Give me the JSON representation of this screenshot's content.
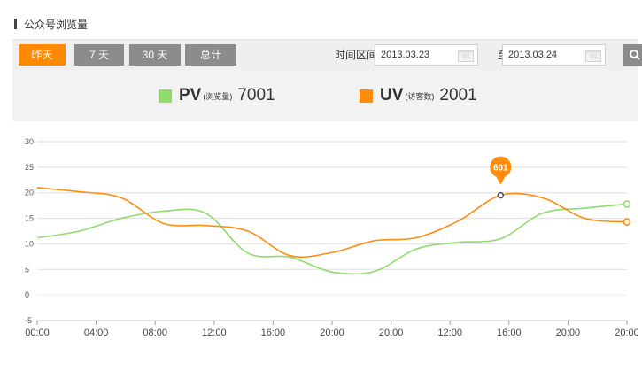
{
  "header": {
    "title": "公众号浏览量"
  },
  "toolbar": {
    "range_buttons": [
      {
        "label": "昨天",
        "active": true
      },
      {
        "label": "7 天",
        "active": false
      },
      {
        "label": "30 天",
        "active": false
      },
      {
        "label": "总计",
        "active": false
      }
    ],
    "range_label": "时间区间",
    "start_date": "2013.03.23",
    "to_label": "至",
    "end_date": "2013.03.24"
  },
  "legend": [
    {
      "name": "PV",
      "sub": "(浏览量)",
      "value": "7001",
      "color": "#8fdc6b"
    },
    {
      "name": "UV",
      "sub": "(访客数)",
      "value": "2001",
      "color": "#ff8c0d"
    }
  ],
  "tooltip": {
    "label": "601"
  },
  "chart_data": {
    "type": "line",
    "x_ticks": [
      "00:00",
      "04:00",
      "08:00",
      "12:00",
      "16:00",
      "20:00",
      "20:00",
      "12:00",
      "16:00",
      "20:00",
      "20:00"
    ],
    "y_ticks": [
      30,
      25,
      20,
      15,
      10,
      5,
      0,
      -5
    ],
    "ylim": [
      -5,
      30
    ],
    "grid": true,
    "series": [
      {
        "name": "PV",
        "color": "#8fdc6b",
        "values": [
          11.2,
          12.5,
          15.0,
          16.4,
          16.0,
          8.2,
          7.4,
          4.5,
          4.6,
          9.0,
          10.3,
          11.0,
          16.0,
          17.0,
          17.8
        ]
      },
      {
        "name": "UV",
        "color": "#ff8c0d",
        "values": [
          21.0,
          20.2,
          19.0,
          14.0,
          13.6,
          12.5,
          7.7,
          8.3,
          10.6,
          11.2,
          14.5,
          19.5,
          19.0,
          15.0,
          14.3
        ]
      }
    ],
    "highlight": {
      "series": "UV",
      "index": 11
    }
  }
}
